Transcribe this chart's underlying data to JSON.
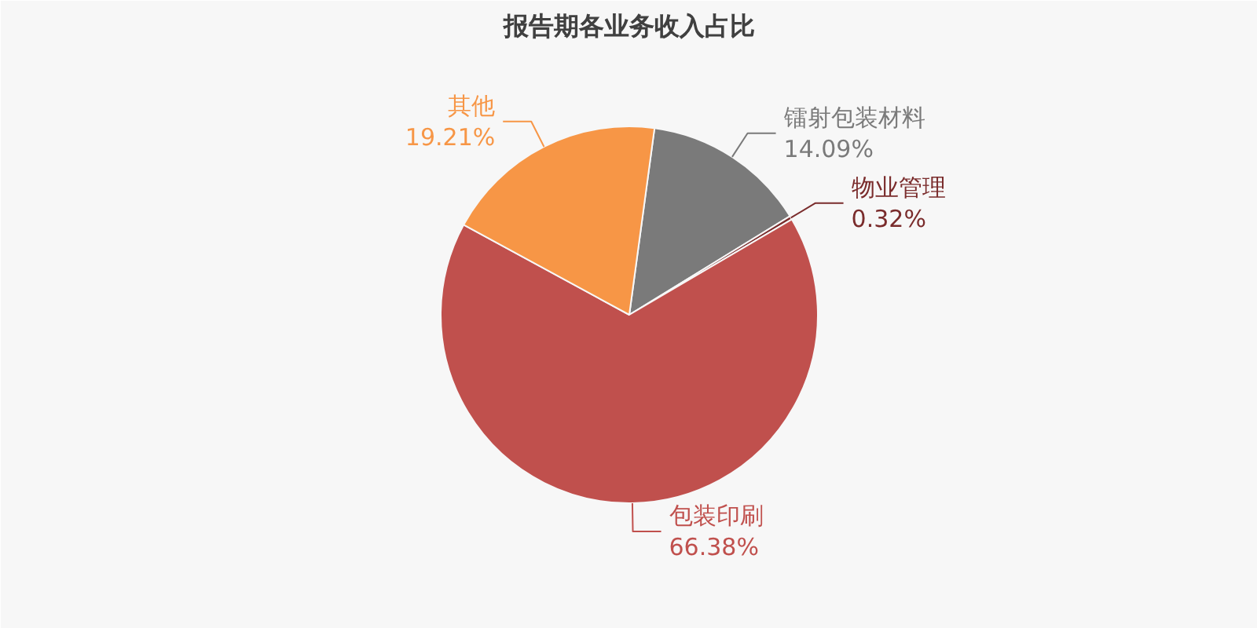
{
  "chart_data": {
    "type": "pie",
    "title": "报告期各业务收入占比",
    "categories": [
      "镭射包装材料",
      "物业管理",
      "包装印刷",
      "其他"
    ],
    "values": [
      14.09,
      0.32,
      66.38,
      19.21
    ],
    "colors": [
      "#7a7a7a",
      "#7a2c2c",
      "#c0504d",
      "#f79646"
    ],
    "value_labels": [
      "14.09%",
      "0.32%",
      "66.38%",
      "19.21%"
    ]
  }
}
